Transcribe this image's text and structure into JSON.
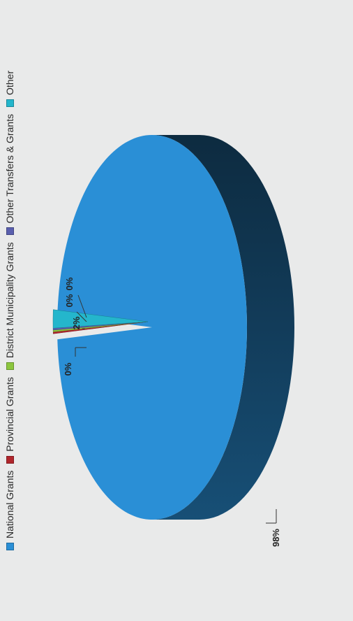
{
  "chart_data": {
    "type": "pie",
    "title": "",
    "categories": [
      "National Grants",
      "Provincial Grants",
      "District Municipality Grants",
      "Other Transfers & Grants",
      "Other"
    ],
    "values": [
      98,
      0,
      0,
      0,
      2
    ],
    "data_labels": [
      "98%",
      "0%",
      "0%",
      "0%",
      "2%"
    ],
    "colors": [
      "#2a8fd6",
      "#b0262c",
      "#8cc63e",
      "#5a5fae",
      "#24b6cc"
    ],
    "legend_position": "top",
    "style": "3d-exploded",
    "orientation": "rotated-90-ccw"
  }
}
